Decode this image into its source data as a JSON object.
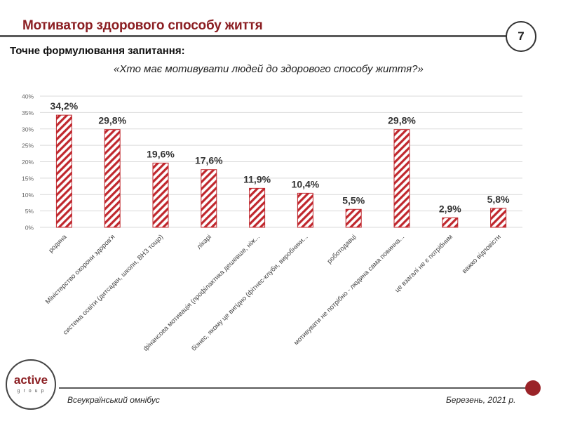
{
  "header": {
    "title": "Мотиватор здорового способу життя",
    "page_number": "7"
  },
  "subtitle": "Точне формулювання запитання:",
  "question": "«Хто має мотивувати людей до здорового способу життя?»",
  "footer": {
    "logo_main": "active",
    "logo_sub": "group",
    "left_text": "Всеукраїнський омнібус",
    "right_text": "Березень, 2021 р."
  },
  "colors": {
    "accent": "#8b1e22",
    "bar_stroke": "#c0272d",
    "bar_stripe": "#c0272d",
    "footer_dot": "#9a2328",
    "gridline": "#d9d9d9"
  },
  "chart_data": {
    "type": "bar",
    "title": "",
    "xlabel": "",
    "ylabel": "",
    "ylim": [
      0,
      40
    ],
    "yticks": [
      "0%",
      "5%",
      "10%",
      "15%",
      "20%",
      "25%",
      "30%",
      "35%",
      "40%"
    ],
    "ytick_values": [
      0,
      5,
      10,
      15,
      20,
      25,
      30,
      35,
      40
    ],
    "grid": true,
    "categories": [
      "родина",
      "Міністерство охорони здоров'я",
      "система освіти (дитсадки, школи, ВНЗ тощо)",
      "лікарі",
      "фінансова мотивація (профілактика дешевше, ніж...",
      "бізнес, якому це вигідно (фітнес-клуби, виробники...",
      "роботодавці",
      "мотивувати не потрібно - людина сама повинна...",
      "це взагалі не є потрібним",
      "важко відповісти"
    ],
    "values": [
      34.2,
      29.8,
      19.6,
      17.6,
      11.9,
      10.4,
      5.5,
      29.8,
      2.9,
      5.8
    ],
    "data_labels": [
      "34,2%",
      "29,8%",
      "19,6%",
      "17,6%",
      "11,9%",
      "10,4%",
      "5,5%",
      "29,8%",
      "2,9%",
      "5,8%"
    ]
  }
}
